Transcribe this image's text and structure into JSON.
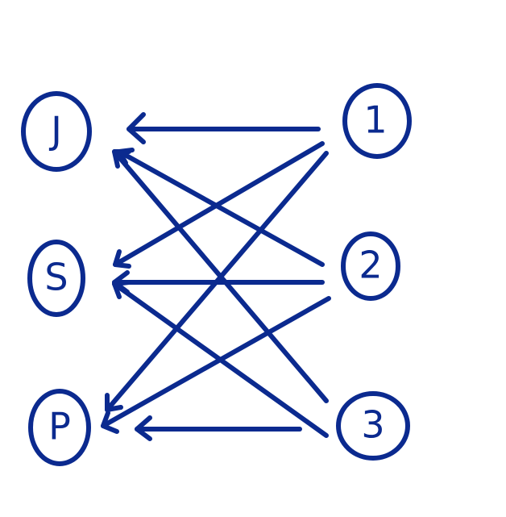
{
  "diagram": {
    "ink_color": "#0b2a8f",
    "left_nodes": [
      {
        "id": "J",
        "label": "J"
      },
      {
        "id": "S",
        "label": "S"
      },
      {
        "id": "P",
        "label": "P"
      }
    ],
    "right_nodes": [
      {
        "id": "1",
        "label": "1"
      },
      {
        "id": "2",
        "label": "2"
      },
      {
        "id": "3",
        "label": "3"
      }
    ],
    "edges": [
      {
        "from": "1",
        "to": "J"
      },
      {
        "from": "1",
        "to": "S"
      },
      {
        "from": "1",
        "to": "P"
      },
      {
        "from": "2",
        "to": "J"
      },
      {
        "from": "2",
        "to": "S"
      },
      {
        "from": "2",
        "to": "P"
      },
      {
        "from": "3",
        "to": "J"
      },
      {
        "from": "3",
        "to": "S"
      },
      {
        "from": "3",
        "to": "P"
      }
    ]
  }
}
